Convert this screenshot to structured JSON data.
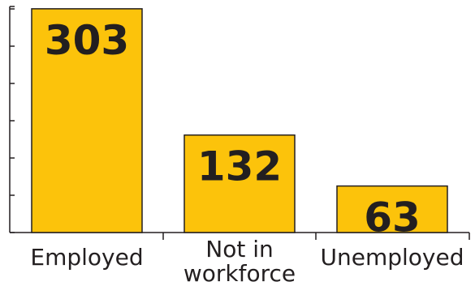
{
  "chart_data": {
    "type": "bar",
    "categories": [
      "Employed",
      "Not in workforce",
      "Unemployed"
    ],
    "category_lines": [
      [
        "Employed"
      ],
      [
        "Not in",
        "workforce"
      ],
      [
        "Unemployed"
      ]
    ],
    "values": [
      303,
      132,
      63
    ],
    "data_labels": [
      "303",
      "132",
      "63"
    ],
    "ylim": [
      0,
      350
    ],
    "grid": false,
    "legend": "none",
    "bar_color": "#fcc30b",
    "bar_outline": "#231f20",
    "axis_color": "#231f20"
  }
}
